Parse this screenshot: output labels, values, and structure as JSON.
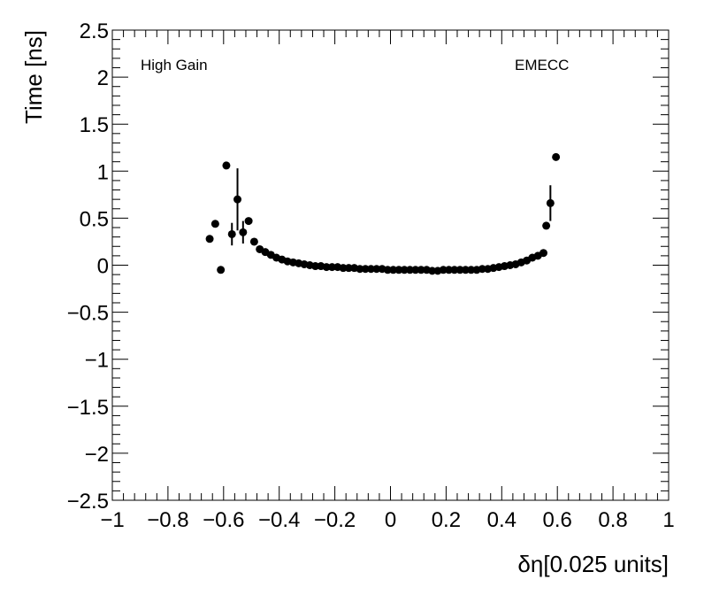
{
  "chart_data": {
    "type": "scatter",
    "xlabel": "δη[0.025 units]",
    "ylabel": "Time [ns]",
    "xlim": [
      -1,
      1
    ],
    "ylim": [
      -2.5,
      2.5
    ],
    "x_ticks": [
      -1,
      -0.8,
      -0.6,
      -0.4,
      -0.2,
      0,
      0.2,
      0.4,
      0.6,
      0.8,
      1
    ],
    "x_tick_labels": [
      "−1",
      "−0.8",
      "−0.6",
      "−0.4",
      "−0.2",
      "0",
      "0.2",
      "0.4",
      "0.6",
      "0.8",
      "1"
    ],
    "y_ticks": [
      -2.5,
      -2,
      -1.5,
      -1,
      -0.5,
      0,
      0.5,
      1,
      1.5,
      2,
      2.5
    ],
    "y_tick_labels": [
      "−2.5",
      "−2",
      "−1.5",
      "−1",
      "−0.5",
      "0",
      "0.5",
      "1",
      "1.5",
      "2",
      "2.5"
    ],
    "grid": false,
    "annotations": [
      "High Gain",
      "EMECC"
    ],
    "points": [
      {
        "x": -0.65,
        "y": 0.28
      },
      {
        "x": -0.63,
        "y": 0.44
      },
      {
        "x": -0.61,
        "y": -0.05
      },
      {
        "x": -0.59,
        "y": 1.06
      },
      {
        "x": -0.57,
        "y": 0.33,
        "err": 0.12
      },
      {
        "x": -0.55,
        "y": 0.7,
        "err": 0.33
      },
      {
        "x": -0.53,
        "y": 0.35,
        "err": 0.12
      },
      {
        "x": -0.51,
        "y": 0.47
      },
      {
        "x": -0.49,
        "y": 0.25
      },
      {
        "x": -0.47,
        "y": 0.17
      },
      {
        "x": -0.45,
        "y": 0.14
      },
      {
        "x": -0.43,
        "y": 0.11
      },
      {
        "x": -0.41,
        "y": 0.08
      },
      {
        "x": -0.39,
        "y": 0.06
      },
      {
        "x": -0.37,
        "y": 0.04
      },
      {
        "x": -0.35,
        "y": 0.03
      },
      {
        "x": -0.33,
        "y": 0.02
      },
      {
        "x": -0.31,
        "y": 0.01
      },
      {
        "x": -0.29,
        "y": 0.0
      },
      {
        "x": -0.27,
        "y": -0.01
      },
      {
        "x": -0.25,
        "y": -0.01
      },
      {
        "x": -0.23,
        "y": -0.02
      },
      {
        "x": -0.21,
        "y": -0.02
      },
      {
        "x": -0.19,
        "y": -0.02
      },
      {
        "x": -0.17,
        "y": -0.03
      },
      {
        "x": -0.15,
        "y": -0.03
      },
      {
        "x": -0.13,
        "y": -0.03
      },
      {
        "x": -0.11,
        "y": -0.04
      },
      {
        "x": -0.09,
        "y": -0.04
      },
      {
        "x": -0.07,
        "y": -0.04
      },
      {
        "x": -0.05,
        "y": -0.04
      },
      {
        "x": -0.03,
        "y": -0.04
      },
      {
        "x": -0.01,
        "y": -0.05
      },
      {
        "x": 0.01,
        "y": -0.05
      },
      {
        "x": 0.03,
        "y": -0.05
      },
      {
        "x": 0.05,
        "y": -0.05
      },
      {
        "x": 0.07,
        "y": -0.05
      },
      {
        "x": 0.09,
        "y": -0.05
      },
      {
        "x": 0.11,
        "y": -0.05
      },
      {
        "x": 0.13,
        "y": -0.05
      },
      {
        "x": 0.15,
        "y": -0.06
      },
      {
        "x": 0.17,
        "y": -0.06
      },
      {
        "x": 0.19,
        "y": -0.05
      },
      {
        "x": 0.21,
        "y": -0.05
      },
      {
        "x": 0.23,
        "y": -0.05
      },
      {
        "x": 0.25,
        "y": -0.05
      },
      {
        "x": 0.27,
        "y": -0.05
      },
      {
        "x": 0.29,
        "y": -0.05
      },
      {
        "x": 0.31,
        "y": -0.05
      },
      {
        "x": 0.33,
        "y": -0.04
      },
      {
        "x": 0.35,
        "y": -0.04
      },
      {
        "x": 0.37,
        "y": -0.03
      },
      {
        "x": 0.39,
        "y": -0.02
      },
      {
        "x": 0.41,
        "y": -0.01
      },
      {
        "x": 0.43,
        "y": 0.0
      },
      {
        "x": 0.45,
        "y": 0.01
      },
      {
        "x": 0.47,
        "y": 0.03
      },
      {
        "x": 0.49,
        "y": 0.05
      },
      {
        "x": 0.51,
        "y": 0.08
      },
      {
        "x": 0.53,
        "y": 0.1
      },
      {
        "x": 0.55,
        "y": 0.13
      },
      {
        "x": 0.56,
        "y": 0.42
      },
      {
        "x": 0.575,
        "y": 0.66,
        "err": 0.19
      },
      {
        "x": 0.595,
        "y": 1.15
      }
    ]
  }
}
